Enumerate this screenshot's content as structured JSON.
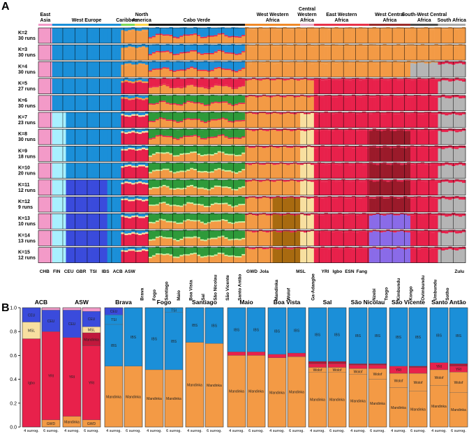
{
  "panelA": {
    "label": "A",
    "regions": [
      {
        "name": "East Asia",
        "color": "#f39ac8",
        "start": 0,
        "end": 1
      },
      {
        "name": "West Europe",
        "color": "#1b8fd8",
        "start": 1,
        "end": 6
      },
      {
        "name": "Caribbean",
        "color": "#7ed957",
        "start": 6,
        "end": 7
      },
      {
        "name": "North America",
        "color": "#ffd84d",
        "start": 7,
        "end": 8
      },
      {
        "name": "Cabo Verde",
        "color": "#1a1a1a",
        "start": 8,
        "end": 15
      },
      {
        "name": "West Western Africa",
        "color": "#f08a2a",
        "start": 15,
        "end": 19
      },
      {
        "name": "Central Western Africa",
        "color": "#e8b0c8",
        "start": 19,
        "end": 20
      },
      {
        "name": "East Western Africa",
        "color": "#e8324a",
        "start": 20,
        "end": 24
      },
      {
        "name": "West Central Africa",
        "color": "#9a2c2c",
        "start": 24,
        "end": 27
      },
      {
        "name": "South-West Central Africa",
        "color": "#4a4a4a",
        "start": 27,
        "end": 29
      },
      {
        "name": "South Africa",
        "color": "#aaaaaa",
        "start": 29,
        "end": 31
      }
    ],
    "k_rows": [
      {
        "k": "K=2",
        "runs": "30 runs"
      },
      {
        "k": "K=3",
        "runs": "30 runs"
      },
      {
        "k": "K=4",
        "runs": "30 runs"
      },
      {
        "k": "K=5",
        "runs": "27 runs"
      },
      {
        "k": "K=6",
        "runs": "30 runs"
      },
      {
        "k": "K=7",
        "runs": "23 runs"
      },
      {
        "k": "K=8",
        "runs": "30 runs"
      },
      {
        "k": "K=9",
        "runs": "18 runs"
      },
      {
        "k": "K=10",
        "runs": "20 runs"
      },
      {
        "k": "K=11",
        "runs": "12 runs"
      },
      {
        "k": "K=12",
        "runs": "9 runs"
      },
      {
        "k": "K=13",
        "runs": "10 runs"
      },
      {
        "k": "K=14",
        "runs": "13 runs"
      },
      {
        "k": "K=15",
        "runs": "12 runs"
      }
    ],
    "populations": [
      "CHB",
      "FIN",
      "CEU",
      "GBR",
      "TSI",
      "IBS",
      "ACB",
      "ASW",
      "Brava",
      "Fogo",
      "Santiago",
      "Maio",
      "Boa Vista",
      "Sal",
      "São Nicolau",
      "São Vicente",
      "Santo Antão",
      "GWD",
      "Jola",
      "Mandinka",
      "Wolof",
      "MSL",
      "Ga-Adangbe",
      "YRI",
      "Igbo",
      "ESN",
      "Fang",
      "Nzebi",
      "Tsogo",
      "Kimbundu",
      "Kongo",
      "Ovimbundu",
      "Umbundu",
      "Sotho",
      "Zulu"
    ]
  },
  "panelB": {
    "label": "B",
    "surrogate_labels": {
      "four": "4 surrog.",
      "six": "6 surrog."
    }
  },
  "chart_data": {
    "type": "bar",
    "stacked": true,
    "ylabel": "",
    "ylim": [
      0,
      1
    ],
    "yticks": [
      "0.0",
      "0.2",
      "0.4",
      "0.6",
      "0.8",
      "1.0"
    ],
    "groups": [
      {
        "title": "ACB",
        "bars": [
          [
            {
              "name": "Igbo",
              "value": 0.74,
              "color": "#e8214b"
            },
            {
              "name": "Ga-Adangbe",
              "value": 0.0,
              "color": "#e8214b"
            },
            {
              "name": "MSL",
              "value": 0.14,
              "color": "#f8e0a0"
            },
            {
              "name": "CEU",
              "value": 0.12,
              "color": "#3a4bdc"
            }
          ],
          [
            {
              "name": "GWD",
              "value": 0.06,
              "color": "#f39a45"
            },
            {
              "name": "YRI",
              "value": 0.74,
              "color": "#e8214b"
            },
            {
              "name": "Ga-Adangbe",
              "value": 0.0,
              "color": "#e8214b"
            },
            {
              "name": "CEU",
              "value": 0.18,
              "color": "#3a4bdc"
            },
            {
              "name": "CHB",
              "value": 0.02,
              "color": "#f39ac8"
            }
          ]
        ]
      },
      {
        "title": "ASW",
        "bars": [
          [
            {
              "name": "Mandinka",
              "value": 0.09,
              "color": "#f39a45"
            },
            {
              "name": "YRI",
              "value": 0.66,
              "color": "#e8214b"
            },
            {
              "name": "CEU",
              "value": 0.23,
              "color": "#3a4bdc"
            },
            {
              "name": "CHB",
              "value": 0.02,
              "color": "#f39ac8"
            }
          ],
          [
            {
              "name": "GWD",
              "value": 0.06,
              "color": "#f39a45"
            },
            {
              "name": "YRI",
              "value": 0.62,
              "color": "#e8214b"
            },
            {
              "name": "Mandinka",
              "value": 0.11,
              "color": "#c0183c"
            },
            {
              "name": "MSL",
              "value": 0.05,
              "color": "#f8e0a0"
            },
            {
              "name": "CEU",
              "value": 0.13,
              "color": "#3a4bdc"
            },
            {
              "name": "CHB",
              "value": 0.03,
              "color": "#f39ac8"
            }
          ]
        ]
      },
      {
        "title": "Brava",
        "bars": [
          [
            {
              "name": "Mandinka",
              "value": 0.51,
              "color": "#f39a45"
            },
            {
              "name": "IBS",
              "value": 0.35,
              "color": "#1b8fd8"
            },
            {
              "name": "TSI",
              "value": 0.08,
              "color": "#1b8fd8"
            },
            {
              "name": "CEU",
              "value": 0.06,
              "color": "#3a4bdc"
            }
          ],
          [
            {
              "name": "Mandinka",
              "value": 0.51,
              "color": "#f39a45"
            },
            {
              "name": "IBS",
              "value": 0.49,
              "color": "#1b8fd8"
            }
          ]
        ]
      },
      {
        "title": "Fogo",
        "bars": [
          [
            {
              "name": "Mandinka",
              "value": 0.48,
              "color": "#f39a45"
            },
            {
              "name": "IBS",
              "value": 0.52,
              "color": "#1b8fd8"
            }
          ],
          [
            {
              "name": "Mandinka",
              "value": 0.48,
              "color": "#f39a45"
            },
            {
              "name": "IBS",
              "value": 0.48,
              "color": "#1b8fd8"
            },
            {
              "name": "TSI",
              "value": 0.04,
              "color": "#1b8fd8"
            }
          ]
        ]
      },
      {
        "title": "Santiago",
        "bars": [
          [
            {
              "name": "Mandinka",
              "value": 0.71,
              "color": "#f39a45"
            },
            {
              "name": "IBS",
              "value": 0.29,
              "color": "#1b8fd8"
            }
          ],
          [
            {
              "name": "Mandinka",
              "value": 0.7,
              "color": "#f39a45"
            },
            {
              "name": "IBS",
              "value": 0.3,
              "color": "#1b8fd8"
            }
          ]
        ]
      },
      {
        "title": "Maio",
        "bars": [
          [
            {
              "name": "Mandinka",
              "value": 0.6,
              "color": "#f39a45"
            },
            {
              "name": "YRI",
              "value": 0.03,
              "color": "#e8214b"
            },
            {
              "name": "IBS",
              "value": 0.37,
              "color": "#1b8fd8"
            }
          ],
          [
            {
              "name": "Mandinka",
              "value": 0.6,
              "color": "#f39a45"
            },
            {
              "name": "YRI",
              "value": 0.03,
              "color": "#e8214b"
            },
            {
              "name": "IBS",
              "value": 0.37,
              "color": "#1b8fd8"
            }
          ]
        ]
      },
      {
        "title": "Boa Vista",
        "bars": [
          [
            {
              "name": "Mandinka",
              "value": 0.58,
              "color": "#f39a45"
            },
            {
              "name": "YRI",
              "value": 0.03,
              "color": "#e8214b"
            },
            {
              "name": "IBS",
              "value": 0.39,
              "color": "#1b8fd8"
            }
          ],
          [
            {
              "name": "Mandinka",
              "value": 0.59,
              "color": "#f39a45"
            },
            {
              "name": "YRI",
              "value": 0.03,
              "color": "#e8214b"
            },
            {
              "name": "IBS",
              "value": 0.38,
              "color": "#1b8fd8"
            }
          ]
        ]
      },
      {
        "title": "Sal",
        "bars": [
          [
            {
              "name": "Mandinka",
              "value": 0.46,
              "color": "#f39a45"
            },
            {
              "name": "Wolof",
              "value": 0.04,
              "color": "#f39a45"
            },
            {
              "name": "YRI",
              "value": 0.03,
              "color": "#e8214b"
            },
            {
              "name": "",
              "value": 0.02,
              "color": "#b01838"
            },
            {
              "name": "IBS",
              "value": 0.45,
              "color": "#1b8fd8"
            }
          ],
          [
            {
              "name": "Mandinka",
              "value": 0.46,
              "color": "#f39a45"
            },
            {
              "name": "Wolof",
              "value": 0.04,
              "color": "#f39a45"
            },
            {
              "name": "YRI",
              "value": 0.03,
              "color": "#e8214b"
            },
            {
              "name": "",
              "value": 0.02,
              "color": "#b01838"
            },
            {
              "name": "IBS",
              "value": 0.45,
              "color": "#1b8fd8"
            }
          ]
        ]
      },
      {
        "title": "São Nicolau",
        "bars": [
          [
            {
              "name": "Mandinka",
              "value": 0.44,
              "color": "#f39a45"
            },
            {
              "name": "Wolof",
              "value": 0.05,
              "color": "#f39a45"
            },
            {
              "name": "",
              "value": 0.03,
              "color": "#e8214b"
            },
            {
              "name": "",
              "value": 0.01,
              "color": "#b01838"
            },
            {
              "name": "IBS",
              "value": 0.47,
              "color": "#1b8fd8"
            }
          ],
          [
            {
              "name": "Mandinka",
              "value": 0.4,
              "color": "#f39a45"
            },
            {
              "name": "Wolof",
              "value": 0.09,
              "color": "#f39a45"
            },
            {
              "name": "",
              "value": 0.03,
              "color": "#e8214b"
            },
            {
              "name": "",
              "value": 0.01,
              "color": "#b01838"
            },
            {
              "name": "IBS",
              "value": 0.47,
              "color": "#1b8fd8"
            }
          ]
        ]
      },
      {
        "title": "São Vicente",
        "bars": [
          [
            {
              "name": "Mandinka",
              "value": 0.33,
              "color": "#f39a45"
            },
            {
              "name": "Wolof",
              "value": 0.12,
              "color": "#f39a45"
            },
            {
              "name": "YRI",
              "value": 0.06,
              "color": "#e8214b"
            },
            {
              "name": "IBS",
              "value": 0.49,
              "color": "#1b8fd8"
            }
          ],
          [
            {
              "name": "Mandinka",
              "value": 0.3,
              "color": "#f39a45"
            },
            {
              "name": "Wolof",
              "value": 0.15,
              "color": "#f39a45"
            },
            {
              "name": "",
              "value": 0.05,
              "color": "#e8214b"
            },
            {
              "name": "",
              "value": 0.01,
              "color": "#b01838"
            },
            {
              "name": "IBS",
              "value": 0.49,
              "color": "#1b8fd8"
            }
          ]
        ]
      },
      {
        "title": "Santo Antão",
        "bars": [
          [
            {
              "name": "Mandinka",
              "value": 0.35,
              "color": "#f39a45"
            },
            {
              "name": "Wolof",
              "value": 0.13,
              "color": "#f39a45"
            },
            {
              "name": "YRI",
              "value": 0.06,
              "color": "#e8214b"
            },
            {
              "name": "IBS",
              "value": 0.46,
              "color": "#1b8fd8"
            }
          ],
          [
            {
              "name": "Mandinka",
              "value": 0.29,
              "color": "#f39a45"
            },
            {
              "name": "Wolof",
              "value": 0.17,
              "color": "#f39a45"
            },
            {
              "name": "YRI",
              "value": 0.05,
              "color": "#e8214b"
            },
            {
              "name": "",
              "value": 0.02,
              "color": "#b01838"
            },
            {
              "name": "IBS",
              "value": 0.47,
              "color": "#1b8fd8"
            }
          ]
        ]
      }
    ]
  }
}
